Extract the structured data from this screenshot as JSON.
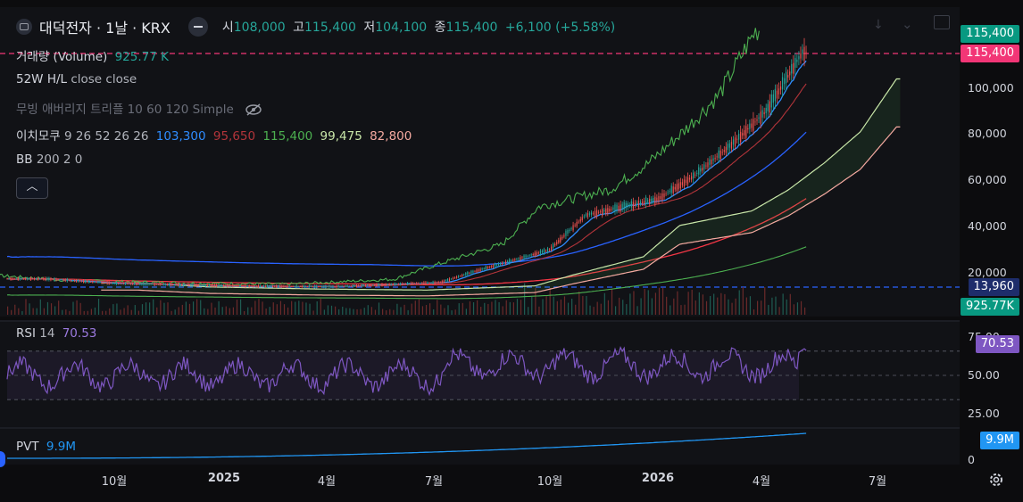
{
  "header": {
    "symbol": "대덕전자 · 1날 · KRX",
    "open_label": "시",
    "open": "108,000",
    "high_label": "고",
    "high": "115,400",
    "low_label": "저",
    "low": "104,100",
    "close_label": "종",
    "close": "115,400",
    "change": "+6,100 (+5.58%)"
  },
  "legend": {
    "volume_name": "거래량 (Volume)",
    "volume_value": "925.77 K",
    "hl_name": "52W H/L",
    "hl_params": "close close",
    "ma_name": "무빙 애버리지 트리플 10 60 120 Simple",
    "ichimoku_name": "이치모쿠",
    "ichimoku_params": "9 26 52 26 26",
    "ichimoku_v1": "103,300",
    "ichimoku_v2": "95,650",
    "ichimoku_v3": "115,400",
    "ichimoku_v4": "99,475",
    "ichimoku_v5": "82,800",
    "bb_name": "BB",
    "bb_params": "200 2 0"
  },
  "rsi": {
    "name": "RSI",
    "param": "14",
    "value": "70.53"
  },
  "pvt": {
    "name": "PVT",
    "value": "9.9M"
  },
  "price_axis": {
    "labels": [
      "100,000",
      "80,000",
      "60,000",
      "40,000",
      "20,000"
    ],
    "rsi_labels": [
      "75.00",
      "50.00",
      "25.00"
    ],
    "pvt_label": "0",
    "tag_high": "115,400",
    "tag_close": "115,400",
    "tag_low": "13,960",
    "tag_vol": "925.77K",
    "tag_rsi": "70.53",
    "tag_pvt": "9.9M"
  },
  "time_axis": [
    "10월",
    "2025",
    "4월",
    "7월",
    "10월",
    "2026",
    "4월",
    "7월"
  ],
  "colors": {
    "up": "#26a69a",
    "down": "#ef5350",
    "ma10": "#2962ff",
    "ma60": "#ef5350",
    "ma120": "#2962ff",
    "rsi": "#7e57c2",
    "pvt": "#2196f3",
    "high": "#f23676"
  },
  "chart_data": {
    "type": "line",
    "x_start": "2024-07",
    "x_end": "2026-05",
    "y_range": [
      0,
      115400
    ],
    "close_approx": [
      {
        "x": "2024-08",
        "y": 17500
      },
      {
        "x": "2024-10",
        "y": 15500
      },
      {
        "x": "2025-01",
        "y": 14500
      },
      {
        "x": "2025-04",
        "y": 14000
      },
      {
        "x": "2025-07",
        "y": 16000
      },
      {
        "x": "2025-08",
        "y": 21000
      },
      {
        "x": "2025-10",
        "y": 30000
      },
      {
        "x": "2025-11",
        "y": 45000
      },
      {
        "x": "2026-01",
        "y": 52000
      },
      {
        "x": "2026-02",
        "y": 62000
      },
      {
        "x": "2026-03",
        "y": 75000
      },
      {
        "x": "2026-04",
        "y": 90000
      },
      {
        "x": "2026-05",
        "y": 115400
      }
    ],
    "rsi_range": [
      25,
      75
    ],
    "rsi_levels": [
      70,
      50,
      30
    ],
    "high_52w": 115400,
    "low_52w": 13960
  }
}
